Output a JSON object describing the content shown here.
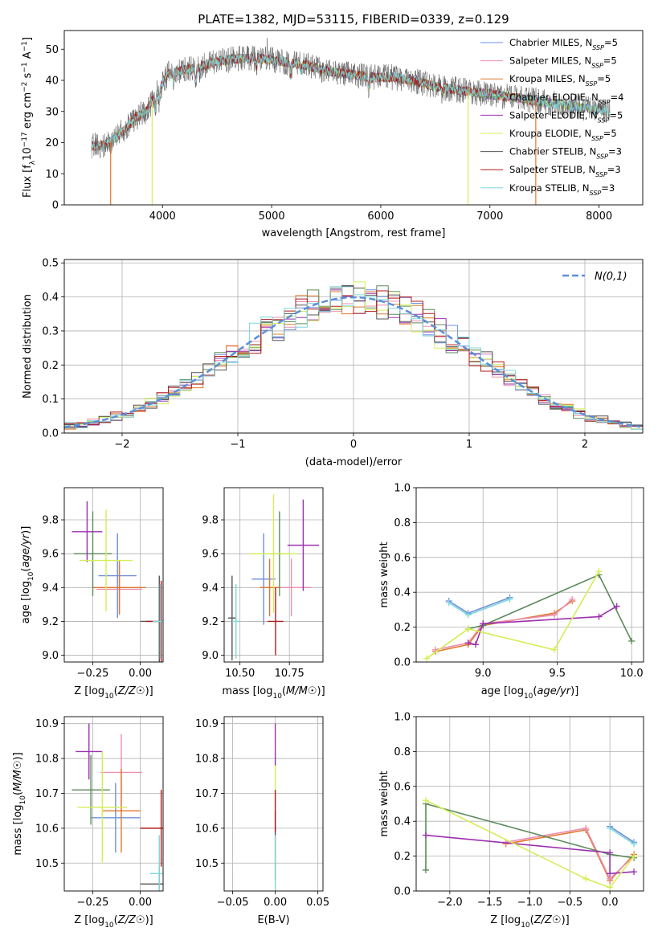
{
  "figure": {
    "title": "PLATE=1382, MJD=53115, FIBERID=0339, z=0.129"
  },
  "palette": {
    "chabrier_miles": "#6f8fdf",
    "salpeter_miles": "#ec8fb0",
    "kroupa_miles": "#e0782e",
    "chabrier_elodie": "#5b8a5b",
    "salpeter_elodie": "#9b30b0",
    "kroupa_elodie": "#d4ee55",
    "chabrier_stelib": "#555555",
    "salpeter_stelib": "#b01a1a",
    "kroupa_stelib": "#7fd6d8",
    "normal_curve": "#5b8fd9",
    "grid": "#b0b0b0"
  },
  "chart_data": [
    {
      "id": "spectrum",
      "type": "line",
      "xlabel": "wavelength [Angstrom, rest frame]",
      "ylabel": "Flux [f_λ10^-17 erg cm^-2 s^-1 A^-1]",
      "xlim": [
        3100,
        8400
      ],
      "ylim": [
        0,
        56
      ],
      "xticks": [
        4000,
        5000,
        6000,
        7000,
        8000
      ],
      "yticks": [
        0,
        10,
        20,
        30,
        40,
        50
      ],
      "grid": false,
      "legend_position": "top-right",
      "legend": [
        {
          "label": "Chabrier MILES, N",
          "sub": "SSP",
          "tail": "=5",
          "color": "chabrier_miles"
        },
        {
          "label": "Salpeter MILES, N",
          "sub": "SSP",
          "tail": "=5",
          "color": "salpeter_miles"
        },
        {
          "label": "Kroupa MILES, N",
          "sub": "SSP",
          "tail": "=5",
          "color": "kroupa_miles"
        },
        {
          "label": "Chabrier ELODIE, N",
          "sub": "SSP",
          "tail": "=4",
          "color": "chabrier_elodie"
        },
        {
          "label": "Salpeter ELODIE, N",
          "sub": "SSP",
          "tail": "=5",
          "color": "salpeter_elodie"
        },
        {
          "label": "Kroupa ELODIE, N",
          "sub": "SSP",
          "tail": "=5",
          "color": "kroupa_elodie"
        },
        {
          "label": "Chabrier STELIB, N",
          "sub": "SSP",
          "tail": "=3",
          "color": "chabrier_stelib"
        },
        {
          "label": "Salpeter STELIB, N",
          "sub": "SSP",
          "tail": "=3",
          "color": "salpeter_stelib"
        },
        {
          "label": "Kroupa STELIB, N",
          "sub": "SSP",
          "tail": "=3",
          "color": "kroupa_stelib"
        }
      ],
      "continuum_x": [
        3350,
        3450,
        3550,
        3650,
        3750,
        3850,
        3950,
        4050,
        4150,
        4300,
        4500,
        4700,
        4900,
        5100,
        5300,
        5500,
        5700,
        5900,
        6100,
        6300,
        6500,
        6700,
        6900,
        7100,
        7300,
        7500,
        7700,
        7900,
        8100
      ],
      "continuum_y": [
        19,
        19,
        21,
        24,
        28,
        30,
        36,
        42,
        43,
        44,
        46,
        47,
        47,
        46,
        45,
        43,
        42,
        41,
        41,
        40,
        38,
        37,
        36,
        35,
        34,
        33,
        32,
        31,
        30
      ],
      "series_end_x": [
        8000,
        8000,
        7450,
        8050,
        8050,
        8050,
        8100,
        7450,
        8100
      ],
      "dips": [
        {
          "x": 3525,
          "series": "kroupa_miles",
          "to": 0
        },
        {
          "x": 3905,
          "series": "kroupa_elodie",
          "to": 0
        },
        {
          "x": 6800,
          "series": "kroupa_elodie",
          "to": 0
        },
        {
          "x": 7420,
          "series": "kroupa_miles",
          "to": 0
        }
      ]
    },
    {
      "id": "residuals",
      "type": "histogram",
      "xlabel": "(data-model)/error",
      "ylabel": "Normed distribution",
      "xlim": [
        -2.5,
        2.5
      ],
      "ylim": [
        0,
        0.51
      ],
      "xticks": [
        -2,
        -1,
        0,
        1,
        2
      ],
      "yticks": [
        0.0,
        0.1,
        0.2,
        0.3,
        0.4,
        0.5
      ],
      "grid": true,
      "legend_position": "top-right",
      "normal_label": "N(0,1)",
      "bin_width": 0.1
    },
    {
      "id": "z_age",
      "type": "scatter",
      "xlabel": "Z [log10(Z/Z☉)]",
      "ylabel": "age  [log10(age/yr)]",
      "xlim": [
        -0.4,
        0.12
      ],
      "ylim": [
        8.96,
        9.99
      ],
      "xticks": [
        -0.25,
        0.0
      ],
      "yticks": [
        9.0,
        9.2,
        9.4,
        9.6,
        9.8
      ],
      "grid": true,
      "points": [
        {
          "series": "chabrier_miles",
          "x": -0.12,
          "y": 9.47,
          "xerr": 0.1,
          "yerr": 0.25
        },
        {
          "series": "salpeter_miles",
          "x": -0.11,
          "y": 9.39,
          "xerr": 0.12,
          "yerr": 0.14
        },
        {
          "series": "kroupa_miles",
          "x": -0.11,
          "y": 9.4,
          "xerr": 0.14,
          "yerr": 0.16
        },
        {
          "series": "chabrier_elodie",
          "x": -0.25,
          "y": 9.6,
          "xerr": 0.1,
          "yerr": 0.25
        },
        {
          "series": "salpeter_elodie",
          "x": -0.28,
          "y": 9.73,
          "xerr": 0.08,
          "yerr": 0.18
        },
        {
          "series": "kroupa_elodie",
          "x": -0.18,
          "y": 9.56,
          "xerr": 0.14,
          "yerr": 0.3
        },
        {
          "series": "chabrier_stelib",
          "x": 0.1,
          "y": 9.2,
          "xerr": 0.1,
          "yerr": 0.27
        },
        {
          "series": "salpeter_stelib",
          "x": 0.11,
          "y": 9.2,
          "xerr": 0.08,
          "yerr": 0.24
        },
        {
          "series": "kroupa_stelib",
          "x": 0.105,
          "y": 9.2,
          "xerr": 0.04,
          "yerr": 0.22
        }
      ]
    },
    {
      "id": "mass_age",
      "type": "scatter",
      "xlabel": "mass [log10(M/M☉)]",
      "ylabel": "",
      "xlim": [
        10.42,
        10.92
      ],
      "ylim": [
        8.96,
        9.99
      ],
      "xticks": [
        10.5,
        10.75
      ],
      "yticks": [
        9.0,
        9.2,
        9.4,
        9.6,
        9.8
      ],
      "grid": true,
      "points": [
        {
          "series": "chabrier_miles",
          "x": 10.62,
          "y": 9.45,
          "xerr": 0.06,
          "yerr": 0.27
        },
        {
          "series": "salpeter_miles",
          "x": 10.76,
          "y": 9.4,
          "xerr": 0.1,
          "yerr": 0.17
        },
        {
          "series": "kroupa_miles",
          "x": 10.65,
          "y": 9.4,
          "xerr": 0.05,
          "yerr": 0.17
        },
        {
          "series": "chabrier_elodie",
          "x": 10.7,
          "y": 9.6,
          "xerr": 0.05,
          "yerr": 0.25
        },
        {
          "series": "salpeter_elodie",
          "x": 10.82,
          "y": 9.65,
          "xerr": 0.08,
          "yerr": 0.27
        },
        {
          "series": "kroupa_elodie",
          "x": 10.67,
          "y": 9.6,
          "xerr": 0.12,
          "yerr": 0.35
        },
        {
          "series": "chabrier_stelib",
          "x": 10.46,
          "y": 9.22,
          "xerr": 0.02,
          "yerr": 0.25
        },
        {
          "series": "salpeter_stelib",
          "x": 10.68,
          "y": 9.2,
          "xerr": 0.04,
          "yerr": 0.2
        },
        {
          "series": "kroupa_stelib",
          "x": 10.48,
          "y": 9.2,
          "xerr": 0.02,
          "yerr": 0.22
        }
      ]
    },
    {
      "id": "age_weight",
      "type": "line",
      "xlabel": "age  [log10(age/yr)]",
      "ylabel": "mass weight",
      "xlim": [
        8.55,
        10.08
      ],
      "ylim": [
        0.0,
        1.0
      ],
      "xticks": [
        9.0,
        9.5,
        10.0
      ],
      "yticks": [
        0.0,
        0.2,
        0.4,
        0.6,
        0.8,
        1.0
      ],
      "grid": true,
      "series": [
        {
          "series": "chabrier_miles",
          "x": [
            8.77,
            8.9,
            9.18
          ],
          "y": [
            0.35,
            0.28,
            0.37
          ]
        },
        {
          "series": "kroupa_stelib",
          "x": [
            8.77,
            8.9,
            9.18
          ],
          "y": [
            0.34,
            0.27,
            0.36
          ]
        },
        {
          "series": "kroupa_miles",
          "x": [
            8.68,
            8.9,
            9.0,
            9.48,
            9.6
          ],
          "y": [
            0.06,
            0.1,
            0.21,
            0.28,
            0.35
          ]
        },
        {
          "series": "salpeter_miles",
          "x": [
            8.68,
            8.9,
            9.0,
            9.48,
            9.6
          ],
          "y": [
            0.07,
            0.11,
            0.22,
            0.27,
            0.36
          ]
        },
        {
          "series": "chabrier_elodie",
          "x": [
            8.9,
            9.0,
            9.78,
            10.0
          ],
          "y": [
            0.19,
            0.21,
            0.5,
            0.12
          ]
        },
        {
          "series": "salpeter_elodie",
          "x": [
            8.9,
            8.95,
            9.0,
            9.78,
            9.9
          ],
          "y": [
            0.11,
            0.1,
            0.22,
            0.26,
            0.32
          ]
        },
        {
          "series": "kroupa_elodie",
          "x": [
            8.62,
            8.9,
            9.48,
            9.78
          ],
          "y": [
            0.02,
            0.19,
            0.07,
            0.52
          ]
        }
      ]
    },
    {
      "id": "z_mass",
      "type": "scatter",
      "xlabel": "Z [log10(Z/Z☉)]",
      "ylabel": "mass [log10(M/M☉)]",
      "xlim": [
        -0.4,
        0.12
      ],
      "ylim": [
        10.42,
        10.92
      ],
      "xticks": [
        -0.25,
        0.0
      ],
      "yticks": [
        10.5,
        10.6,
        10.7,
        10.8,
        10.9
      ],
      "grid": true,
      "points": [
        {
          "series": "chabrier_miles",
          "x": -0.13,
          "y": 10.63,
          "xerr": 0.13,
          "yerr": 0.1
        },
        {
          "series": "salpeter_miles",
          "x": -0.1,
          "y": 10.76,
          "xerr": 0.11,
          "yerr": 0.11
        },
        {
          "series": "kroupa_miles",
          "x": -0.1,
          "y": 10.65,
          "xerr": 0.1,
          "yerr": 0.12
        },
        {
          "series": "chabrier_elodie",
          "x": -0.26,
          "y": 10.71,
          "xerr": 0.1,
          "yerr": 0.1
        },
        {
          "series": "salpeter_elodie",
          "x": -0.27,
          "y": 10.82,
          "xerr": 0.07,
          "yerr": 0.08
        },
        {
          "series": "kroupa_elodie",
          "x": -0.2,
          "y": 10.66,
          "xerr": 0.13,
          "yerr": 0.16
        },
        {
          "series": "chabrier_stelib",
          "x": 0.1,
          "y": 10.44,
          "xerr": 0.1,
          "yerr": 0.05
        },
        {
          "series": "salpeter_stelib",
          "x": 0.11,
          "y": 10.6,
          "xerr": 0.11,
          "yerr": 0.11
        },
        {
          "series": "kroupa_stelib",
          "x": 0.1,
          "y": 10.47,
          "xerr": 0.05,
          "yerr": 0.11
        }
      ]
    },
    {
      "id": "ebv_mass",
      "type": "scatter",
      "xlabel": "E(B-V)",
      "ylabel": "",
      "xlim": [
        -0.06,
        0.056
      ],
      "ylim": [
        10.42,
        10.92
      ],
      "xticks": [
        -0.05,
        0.0,
        0.05
      ],
      "yticks": [
        10.5,
        10.6,
        10.7,
        10.8,
        10.9
      ],
      "grid": true,
      "points": [
        {
          "series": "chabrier_stelib",
          "x": 0.0,
          "y": 10.55,
          "xerr": 0.0,
          "yerr": 0.1
        },
        {
          "series": "kroupa_stelib",
          "x": 0.0,
          "y": 10.5,
          "xerr": 0.0,
          "yerr": 0.08
        },
        {
          "series": "kroupa_elodie",
          "x": 0.0,
          "y": 10.75,
          "xerr": 0.0,
          "yerr": 0.08
        },
        {
          "series": "salpeter_elodie",
          "x": 0.0,
          "y": 10.84,
          "xerr": 0.0,
          "yerr": 0.06
        },
        {
          "series": "salpeter_stelib",
          "x": 0.0,
          "y": 10.65,
          "xerr": 0.0,
          "yerr": 0.06
        }
      ]
    },
    {
      "id": "z_weight",
      "type": "line",
      "xlabel": "Z [log10(Z/Z☉)]",
      "ylabel": "mass weight",
      "xlim": [
        -2.42,
        0.42
      ],
      "ylim": [
        0.0,
        1.0
      ],
      "xticks": [
        -2.0,
        -1.5,
        -1.0,
        -0.5,
        0.0
      ],
      "yticks": [
        0.0,
        0.2,
        0.4,
        0.6,
        0.8,
        1.0
      ],
      "grid": true,
      "series": [
        {
          "series": "chabrier_miles",
          "x": [
            0.0,
            0.3
          ],
          "y": [
            0.37,
            0.28
          ]
        },
        {
          "series": "kroupa_stelib",
          "x": [
            0.0,
            0.3
          ],
          "y": [
            0.36,
            0.27
          ]
        },
        {
          "series": "kroupa_miles",
          "x": [
            -1.3,
            -0.3,
            0.0,
            0.3
          ],
          "y": [
            0.27,
            0.35,
            0.06,
            0.21
          ]
        },
        {
          "series": "salpeter_miles",
          "x": [
            -1.3,
            -0.3,
            0.0,
            0.3
          ],
          "y": [
            0.28,
            0.36,
            0.07,
            0.2
          ]
        },
        {
          "series": "chabrier_elodie",
          "x": [
            -2.3,
            -2.3,
            0.0,
            0.3
          ],
          "y": [
            0.12,
            0.5,
            0.21,
            0.19
          ]
        },
        {
          "series": "salpeter_elodie",
          "x": [
            -2.3,
            0.0,
            0.0,
            0.3
          ],
          "y": [
            0.32,
            0.22,
            0.1,
            0.11
          ]
        },
        {
          "series": "kroupa_elodie",
          "x": [
            -2.3,
            -0.3,
            0.0,
            0.3
          ],
          "y": [
            0.52,
            0.07,
            0.02,
            0.2
          ]
        }
      ]
    }
  ]
}
